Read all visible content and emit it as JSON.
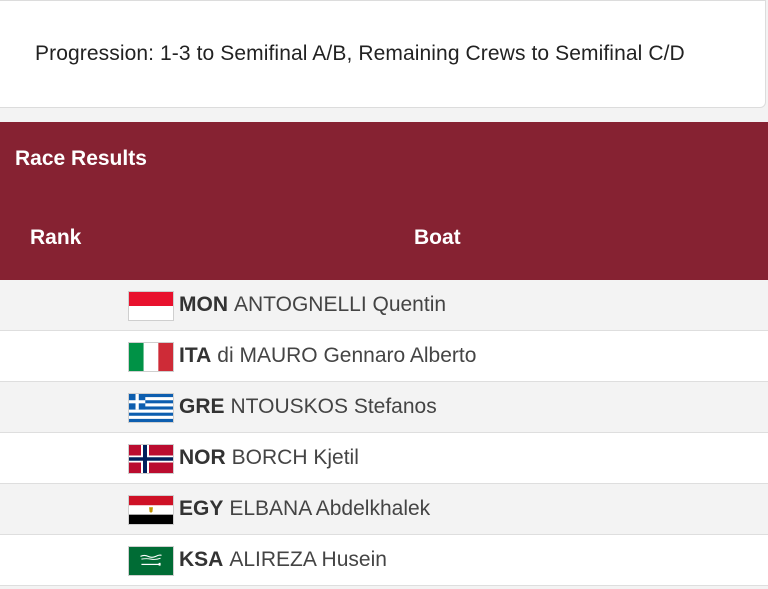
{
  "progression": {
    "text": "Progression: 1-3 to Semifinal A/B, Remaining Crews to Semifinal C/D"
  },
  "results": {
    "title": "Race Results",
    "columns": {
      "rank": "Rank",
      "boat": "Boat"
    },
    "rows": [
      {
        "rank": "",
        "noc": "MON",
        "name": "ANTOGNELLI Quentin",
        "flag": "monaco-flag-icon"
      },
      {
        "rank": "",
        "noc": "ITA",
        "name": "di MAURO Gennaro Alberto",
        "flag": "italy-flag-icon"
      },
      {
        "rank": "",
        "noc": "GRE",
        "name": "NTOUSKOS Stefanos",
        "flag": "greece-flag-icon"
      },
      {
        "rank": "",
        "noc": "NOR",
        "name": "BORCH Kjetil",
        "flag": "norway-flag-icon"
      },
      {
        "rank": "",
        "noc": "EGY",
        "name": "ELBANA Abdelkhalek",
        "flag": "egypt-flag-icon"
      },
      {
        "rank": "",
        "noc": "KSA",
        "name": "ALIREZA Husein",
        "flag": "saudi-arabia-flag-icon"
      }
    ]
  },
  "colors": {
    "header_bg": "#862232",
    "header_text": "#ffffff",
    "row_alt_bg": "#f3f3f3",
    "row_bg": "#ffffff"
  }
}
